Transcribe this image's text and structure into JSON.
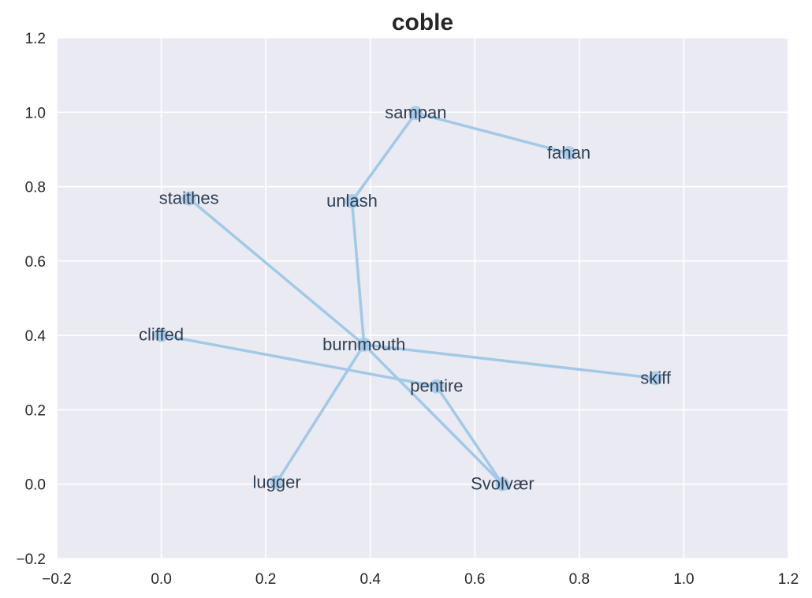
{
  "chart_data": {
    "type": "scatter",
    "title": "coble",
    "xlabel": "",
    "ylabel": "",
    "xlim": [
      -0.2,
      1.2
    ],
    "ylim": [
      -0.2,
      1.2
    ],
    "xticks": [
      "−0.2",
      "0.0",
      "0.2",
      "0.4",
      "0.6",
      "0.8",
      "1.0",
      "1.2"
    ],
    "yticks": [
      "−0.2",
      "0.0",
      "0.2",
      "0.4",
      "0.6",
      "0.8",
      "1.0",
      "1.2"
    ],
    "grid": true,
    "colors": {
      "background": "#eaeaf2",
      "grid": "#ffffff",
      "edge": "#a1c9e8",
      "node": "#a1c9e8",
      "label": "#2f3f54"
    },
    "points": [
      {
        "label": "sampan",
        "x": 0.487,
        "y": 0.998
      },
      {
        "label": "fahan",
        "x": 0.78,
        "y": 0.89
      },
      {
        "label": "staithes",
        "x": 0.053,
        "y": 0.768
      },
      {
        "label": "unlash",
        "x": 0.365,
        "y": 0.761
      },
      {
        "label": "cliffed",
        "x": 0.0,
        "y": 0.401
      },
      {
        "label": "burnmouth",
        "x": 0.388,
        "y": 0.375
      },
      {
        "label": "skiff",
        "x": 0.946,
        "y": 0.285
      },
      {
        "label": "pentire",
        "x": 0.527,
        "y": 0.263
      },
      {
        "label": "lugger",
        "x": 0.221,
        "y": 0.005
      },
      {
        "label": "Svolvær",
        "x": 0.653,
        "y": 0.0
      }
    ],
    "edges": [
      [
        "sampan",
        "fahan"
      ],
      [
        "sampan",
        "unlash"
      ],
      [
        "unlash",
        "burnmouth"
      ],
      [
        "staithes",
        "burnmouth"
      ],
      [
        "burnmouth",
        "Svolvær"
      ],
      [
        "burnmouth",
        "lugger"
      ],
      [
        "burnmouth",
        "skiff"
      ],
      [
        "cliffed",
        "pentire"
      ],
      [
        "pentire",
        "Svolvær"
      ]
    ]
  }
}
